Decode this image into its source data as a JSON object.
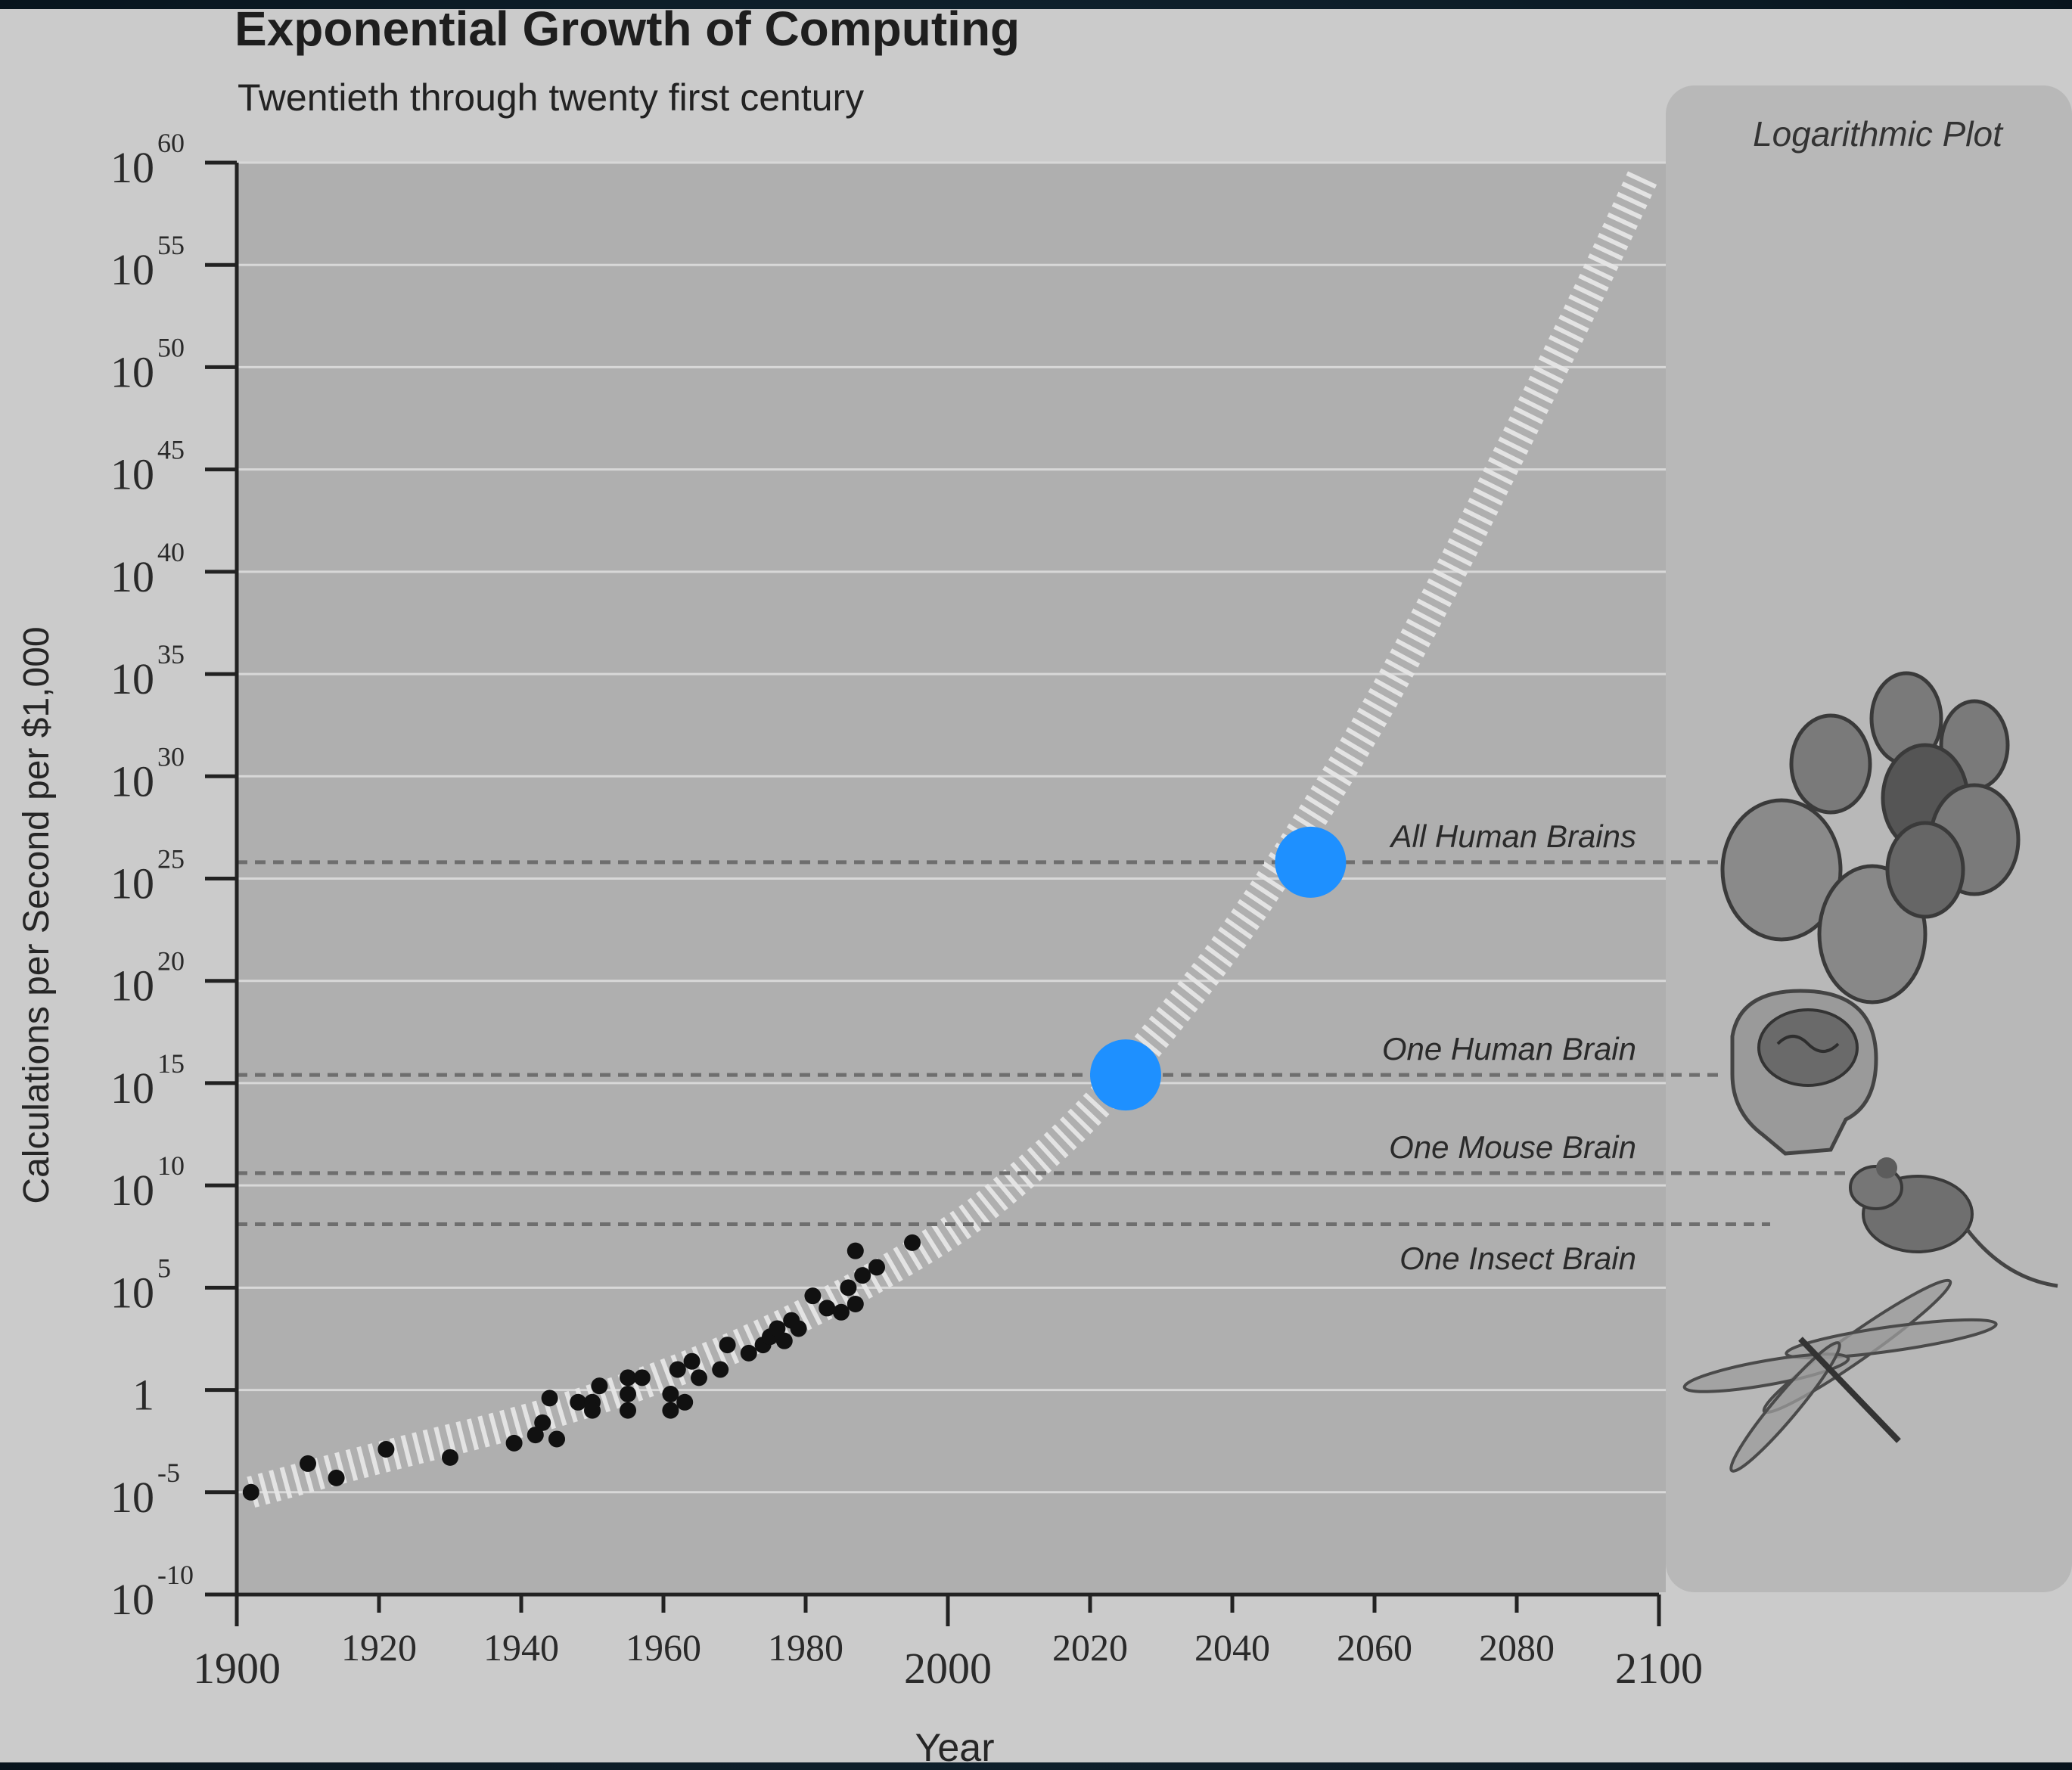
{
  "chart_data": {
    "type": "scatter",
    "title": "Exponential Growth of Computing",
    "subtitle": "Twentieth through twenty first century",
    "xlabel": "Year",
    "ylabel": "Calculations per Second per $1,000",
    "y_scale": "log10",
    "xlim": [
      1900,
      2100
    ],
    "ylim_exponent": [
      -10,
      60
    ],
    "x_ticks": [
      {
        "value": 1900,
        "label": "1900"
      },
      {
        "value": 1920,
        "label": "1920"
      },
      {
        "value": 1940,
        "label": "1940"
      },
      {
        "value": 1960,
        "label": "1960"
      },
      {
        "value": 1980,
        "label": "1980"
      },
      {
        "value": 2000,
        "label": "2000"
      },
      {
        "value": 2020,
        "label": "2020"
      },
      {
        "value": 2040,
        "label": "2040"
      },
      {
        "value": 2060,
        "label": "2060"
      },
      {
        "value": 2080,
        "label": "2080"
      },
      {
        "value": 2100,
        "label": "2100"
      }
    ],
    "y_ticks": [
      {
        "exp": 60,
        "base": "10",
        "sup": "60"
      },
      {
        "exp": 55,
        "base": "10",
        "sup": "55"
      },
      {
        "exp": 50,
        "base": "10",
        "sup": "50"
      },
      {
        "exp": 45,
        "base": "10",
        "sup": "45"
      },
      {
        "exp": 40,
        "base": "10",
        "sup": "40"
      },
      {
        "exp": 35,
        "base": "10",
        "sup": "35"
      },
      {
        "exp": 30,
        "base": "10",
        "sup": "30"
      },
      {
        "exp": 25,
        "base": "10",
        "sup": "25"
      },
      {
        "exp": 20,
        "base": "10",
        "sup": "20"
      },
      {
        "exp": 15,
        "base": "10",
        "sup": "15"
      },
      {
        "exp": 10,
        "base": "10",
        "sup": "10"
      },
      {
        "exp": 5,
        "base": "10",
        "sup": "5"
      },
      {
        "exp": 0,
        "base": "1",
        "sup": ""
      },
      {
        "exp": -5,
        "base": "10",
        "sup": "-5"
      },
      {
        "exp": -10,
        "base": "10",
        "sup": "-10"
      }
    ],
    "grid": true,
    "points": [
      {
        "x": 1902,
        "y_exp": -5.0
      },
      {
        "x": 1910,
        "y_exp": -3.6
      },
      {
        "x": 1914,
        "y_exp": -4.3
      },
      {
        "x": 1921,
        "y_exp": -2.9
      },
      {
        "x": 1930,
        "y_exp": -3.3
      },
      {
        "x": 1939,
        "y_exp": -2.6
      },
      {
        "x": 1943,
        "y_exp": -1.6
      },
      {
        "x": 1944,
        "y_exp": -0.4
      },
      {
        "x": 1942,
        "y_exp": -2.2
      },
      {
        "x": 1945,
        "y_exp": -2.4
      },
      {
        "x": 1948,
        "y_exp": -0.6
      },
      {
        "x": 1950,
        "y_exp": -0.6
      },
      {
        "x": 1951,
        "y_exp": 0.2
      },
      {
        "x": 1950,
        "y_exp": -1.0
      },
      {
        "x": 1955,
        "y_exp": -1.0
      },
      {
        "x": 1955,
        "y_exp": -0.2
      },
      {
        "x": 1955,
        "y_exp": 0.6
      },
      {
        "x": 1957,
        "y_exp": 0.6
      },
      {
        "x": 1961,
        "y_exp": -0.2
      },
      {
        "x": 1961,
        "y_exp": -1.0
      },
      {
        "x": 1963,
        "y_exp": -0.6
      },
      {
        "x": 1962,
        "y_exp": 1.0
      },
      {
        "x": 1964,
        "y_exp": 1.4
      },
      {
        "x": 1965,
        "y_exp": 0.6
      },
      {
        "x": 1968,
        "y_exp": 1.0
      },
      {
        "x": 1969,
        "y_exp": 2.2
      },
      {
        "x": 1972,
        "y_exp": 1.8
      },
      {
        "x": 1974,
        "y_exp": 2.2
      },
      {
        "x": 1975,
        "y_exp": 2.6
      },
      {
        "x": 1976,
        "y_exp": 3.0
      },
      {
        "x": 1977,
        "y_exp": 2.4
      },
      {
        "x": 1978,
        "y_exp": 3.4
      },
      {
        "x": 1979,
        "y_exp": 3.0
      },
      {
        "x": 1981,
        "y_exp": 4.6
      },
      {
        "x": 1983,
        "y_exp": 4.0
      },
      {
        "x": 1985,
        "y_exp": 3.8
      },
      {
        "x": 1986,
        "y_exp": 5.0
      },
      {
        "x": 1987,
        "y_exp": 4.2
      },
      {
        "x": 1987,
        "y_exp": 6.8
      },
      {
        "x": 1988,
        "y_exp": 5.6
      },
      {
        "x": 1990,
        "y_exp": 6.0
      },
      {
        "x": 1995,
        "y_exp": 7.2
      }
    ],
    "trend_curve": [
      {
        "x": 1902,
        "y_exp": -5.0
      },
      {
        "x": 1920,
        "y_exp": -3.3
      },
      {
        "x": 1940,
        "y_exp": -1.6
      },
      {
        "x": 1960,
        "y_exp": 0.6
      },
      {
        "x": 1980,
        "y_exp": 3.6
      },
      {
        "x": 2000,
        "y_exp": 7.5
      },
      {
        "x": 2010,
        "y_exp": 10.3
      },
      {
        "x": 2020,
        "y_exp": 13.5
      },
      {
        "x": 2030,
        "y_exp": 17.6
      },
      {
        "x": 2040,
        "y_exp": 22.0
      },
      {
        "x": 2050,
        "y_exp": 27.3
      },
      {
        "x": 2060,
        "y_exp": 33.0
      },
      {
        "x": 2070,
        "y_exp": 39.5
      },
      {
        "x": 2080,
        "y_exp": 46.5
      },
      {
        "x": 2090,
        "y_exp": 53.5
      },
      {
        "x": 2098,
        "y_exp": 59.5
      }
    ],
    "thresholds": [
      {
        "label": "All Human Brains",
        "y_exp": 25.8
      },
      {
        "label": "One Human Brain",
        "y_exp": 15.4
      },
      {
        "label": "One Mouse Brain",
        "y_exp": 10.6
      },
      {
        "label": "One Insect Brain",
        "y_exp": 8.1
      }
    ],
    "highlights": [
      {
        "x": 2025,
        "y_exp": 15.4,
        "color": "#1e90ff"
      },
      {
        "x": 2051,
        "y_exp": 25.8,
        "color": "#1e90ff"
      }
    ],
    "side_panel": {
      "title": "Logarithmic Plot",
      "illustrations": [
        "human-faces-illustration",
        "human-brain-illustration",
        "mouse-illustration",
        "dragonfly-illustration"
      ]
    }
  }
}
